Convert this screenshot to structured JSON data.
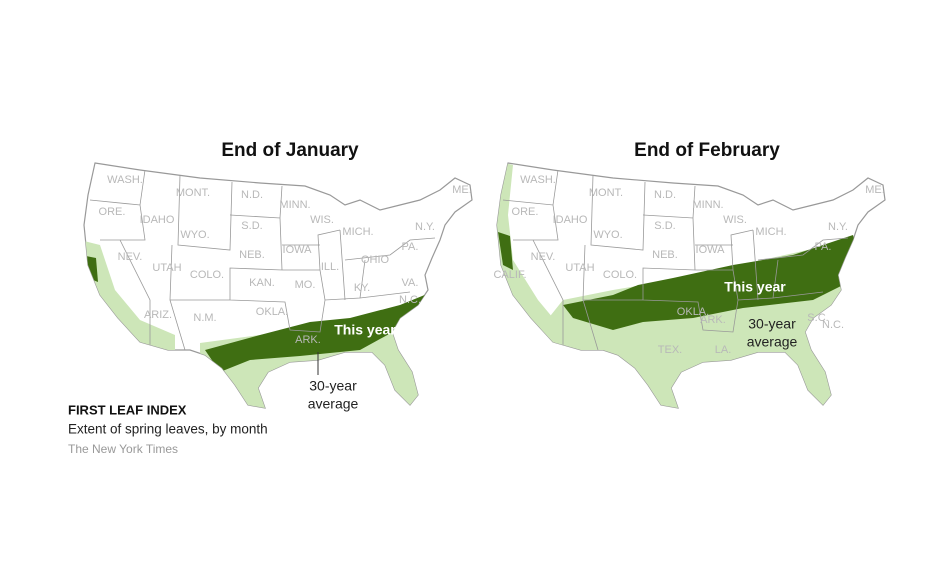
{
  "maps": [
    {
      "title": "End of January",
      "this_year": "This year",
      "average": [
        "30-year",
        "average"
      ],
      "state_labels": [
        "WASH.",
        "MONT.",
        "N.D.",
        "MINN.",
        "ME.",
        "ORE.",
        "IDAHO",
        "WYO.",
        "S.D.",
        "WIS.",
        "MICH.",
        "N.Y.",
        "NEB.",
        "IOWA",
        "PA.",
        "NEV.",
        "UTAH",
        "COLO.",
        "KAN.",
        "MO.",
        "ILL.",
        "OHIO",
        "KY.",
        "VA.",
        "N.C.",
        "ARIZ.",
        "N.M.",
        "OKLA.",
        "ARK."
      ]
    },
    {
      "title": "End of February",
      "this_year": "This year",
      "average": [
        "30-year",
        "average"
      ],
      "state_labels": [
        "WASH.",
        "MONT.",
        "N.D.",
        "MINN.",
        "ME.",
        "ORE.",
        "IDAHO",
        "WYO.",
        "S.D.",
        "WIS.",
        "MICH.",
        "N.Y.",
        "NEB.",
        "IOWA",
        "PA.",
        "NEV.",
        "UTAH",
        "COLO.",
        "CALIF.",
        "OKLA.",
        "TEX.",
        "LA.",
        "ARK.",
        "N.C.",
        "S.C."
      ]
    }
  ],
  "legend": {
    "title": "FIRST LEAF INDEX",
    "subtitle": "Extent of spring leaves, by month",
    "source": "The New York Times"
  }
}
